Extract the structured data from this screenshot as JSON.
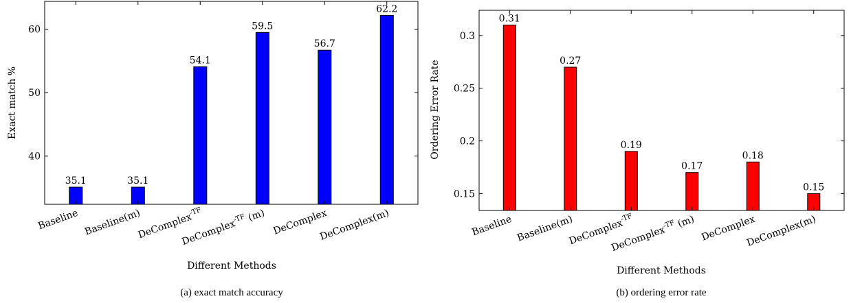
{
  "chart_data": [
    {
      "type": "bar",
      "caption": "(a) exact match accuracy",
      "xlabel": "Different Methods",
      "ylabel": "Exact match %",
      "categories": [
        {
          "text": "Baseline",
          "sup": ""
        },
        {
          "text": "Baseline(m)",
          "sup": ""
        },
        {
          "text": "DeComplex",
          "sup": "-TF"
        },
        {
          "text": "DeComplex",
          "sup": "-TF",
          "suffix": " (m)"
        },
        {
          "text": "DeComplex",
          "sup": ""
        },
        {
          "text": "DeComplex(m)",
          "sup": ""
        }
      ],
      "values": [
        35.1,
        35.1,
        54.1,
        59.5,
        56.7,
        62.2
      ],
      "value_labels": [
        "35.1",
        "35.1",
        "54.1",
        "59.5",
        "56.7",
        "62.2"
      ],
      "ylim": [
        32.4,
        64.4
      ],
      "yticks": [
        40,
        50,
        60
      ],
      "ytick_labels": [
        "40",
        "50",
        "60"
      ],
      "bar_color": "#0000ff",
      "grid": false
    },
    {
      "type": "bar",
      "caption": "(b) ordering error rate",
      "xlabel": "Different Methods",
      "ylabel": "Ordering Error Rate",
      "categories": [
        {
          "text": "Baseline",
          "sup": ""
        },
        {
          "text": "Baseline(m)",
          "sup": ""
        },
        {
          "text": "DeComplex",
          "sup": "-TF"
        },
        {
          "text": "DeComplex",
          "sup": "-TF",
          "suffix": " (m)"
        },
        {
          "text": "DeComplex",
          "sup": ""
        },
        {
          "text": "DeComplex(m)",
          "sup": ""
        }
      ],
      "values": [
        0.31,
        0.27,
        0.19,
        0.17,
        0.18,
        0.15
      ],
      "value_labels": [
        "0.31",
        "0.27",
        "0.19",
        "0.17",
        "0.18",
        "0.15"
      ],
      "ylim": [
        0.134,
        0.324
      ],
      "yticks": [
        0.15,
        0.2,
        0.25,
        0.3
      ],
      "ytick_labels": [
        "0.15",
        "0.2",
        "0.25",
        "0.3"
      ],
      "bar_color": "#ff0000",
      "grid": false
    }
  ]
}
